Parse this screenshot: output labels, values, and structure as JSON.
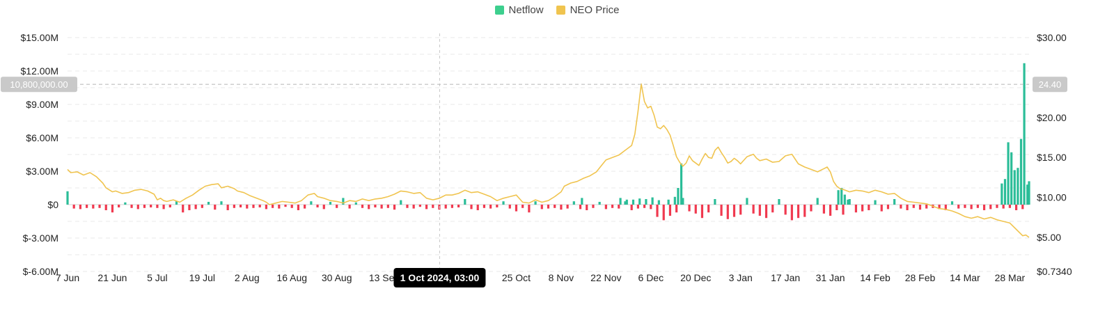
{
  "chart_data": {
    "type": "bar+line",
    "legend_position": "top-center",
    "grid": true,
    "legend": [
      {
        "key": "netflow",
        "label": "Netflow",
        "color": "#3dcf8e"
      },
      {
        "key": "price",
        "label": "NEO Price",
        "color": "#f0c44f"
      }
    ],
    "left_axis": {
      "range": [
        -6000000,
        15000000
      ],
      "ticks": [
        {
          "value": 15000000,
          "label": "$15.00M"
        },
        {
          "value": 12000000,
          "label": "$12.00M"
        },
        {
          "value": 9000000,
          "label": "$9.00M"
        },
        {
          "value": 6000000,
          "label": "$6.00M"
        },
        {
          "value": 3000000,
          "label": "$3.00M"
        },
        {
          "value": 0,
          "label": "$0"
        },
        {
          "value": -3000000,
          "label": "$-3.00M"
        },
        {
          "value": -6000000,
          "label": "$-6.00M"
        }
      ]
    },
    "right_axis": {
      "range": [
        0.734,
        30
      ],
      "ticks": [
        {
          "value": 30,
          "label": "$30.00"
        },
        {
          "value": 20,
          "label": "$20.00"
        },
        {
          "value": 15,
          "label": "$15.00"
        },
        {
          "value": 10,
          "label": "$10.00"
        },
        {
          "value": 5,
          "label": "$5.00"
        },
        {
          "value": 0.734,
          "label": "$0.7340"
        }
      ]
    },
    "x_axis": {
      "ticks": [
        {
          "day": 0,
          "label": "7 Jun"
        },
        {
          "day": 14,
          "label": "21 Jun"
        },
        {
          "day": 28,
          "label": "5 Jul"
        },
        {
          "day": 42,
          "label": "19 Jul"
        },
        {
          "day": 56,
          "label": "2 Aug"
        },
        {
          "day": 70,
          "label": "16 Aug"
        },
        {
          "day": 84,
          "label": "30 Aug"
        },
        {
          "day": 98,
          "label": "13 Se"
        },
        {
          "day": 140,
          "label": "25 Oct"
        },
        {
          "day": 154,
          "label": "8 Nov"
        },
        {
          "day": 168,
          "label": "22 Nov"
        },
        {
          "day": 182,
          "label": "6 Dec"
        },
        {
          "day": 196,
          "label": "20 Dec"
        },
        {
          "day": 210,
          "label": "3 Jan"
        },
        {
          "day": 224,
          "label": "17 Jan"
        },
        {
          "day": 238,
          "label": "31 Jan"
        },
        {
          "day": 252,
          "label": "14 Feb"
        },
        {
          "day": 266,
          "label": "28 Feb"
        },
        {
          "day": 280,
          "label": "14 Mar"
        },
        {
          "day": 294,
          "label": "28 Mar"
        }
      ],
      "days_total": 300
    },
    "crosshair": {
      "x_label": "1 Oct 2024, 03:00",
      "x_day": 116.1,
      "left_label": "10,800,000.00",
      "left_value": 10800000,
      "right_label": "24.40",
      "right_value": 24.4
    },
    "netflow": [
      [
        0,
        1200000
      ],
      [
        2,
        -350000
      ],
      [
        4,
        -400000
      ],
      [
        6,
        -300000
      ],
      [
        8,
        -350000
      ],
      [
        10,
        -300000
      ],
      [
        12,
        -500000
      ],
      [
        14,
        -700000
      ],
      [
        16,
        -250000
      ],
      [
        18,
        200000
      ],
      [
        20,
        -300000
      ],
      [
        22,
        -400000
      ],
      [
        24,
        -300000
      ],
      [
        26,
        -250000
      ],
      [
        28,
        -300000
      ],
      [
        30,
        -400000
      ],
      [
        32,
        -250000
      ],
      [
        34,
        300000
      ],
      [
        36,
        -700000
      ],
      [
        38,
        -500000
      ],
      [
        40,
        -400000
      ],
      [
        42,
        -300000
      ],
      [
        44,
        250000
      ],
      [
        46,
        -450000
      ],
      [
        48,
        300000
      ],
      [
        50,
        -500000
      ],
      [
        52,
        -300000
      ],
      [
        54,
        -250000
      ],
      [
        56,
        -350000
      ],
      [
        58,
        -300000
      ],
      [
        60,
        -250000
      ],
      [
        62,
        -400000
      ],
      [
        64,
        -300000
      ],
      [
        66,
        -350000
      ],
      [
        68,
        -200000
      ],
      [
        70,
        -300000
      ],
      [
        72,
        -500000
      ],
      [
        74,
        -350000
      ],
      [
        76,
        300000
      ],
      [
        78,
        -250000
      ],
      [
        80,
        -400000
      ],
      [
        82,
        250000
      ],
      [
        84,
        -300000
      ],
      [
        86,
        600000
      ],
      [
        88,
        -350000
      ],
      [
        90,
        200000
      ],
      [
        92,
        -300000
      ],
      [
        94,
        -400000
      ],
      [
        96,
        -250000
      ],
      [
        98,
        -350000
      ],
      [
        100,
        -300000
      ],
      [
        102,
        -450000
      ],
      [
        104,
        400000
      ],
      [
        106,
        -300000
      ],
      [
        108,
        -350000
      ],
      [
        110,
        -200000
      ],
      [
        112,
        -400000
      ],
      [
        114,
        -300000
      ],
      [
        116,
        -450000
      ],
      [
        118,
        -350000
      ],
      [
        120,
        -300000
      ],
      [
        122,
        -250000
      ],
      [
        124,
        500000
      ],
      [
        126,
        -400000
      ],
      [
        128,
        -500000
      ],
      [
        130,
        -300000
      ],
      [
        132,
        -350000
      ],
      [
        134,
        -250000
      ],
      [
        136,
        300000
      ],
      [
        138,
        -350000
      ],
      [
        140,
        -600000
      ],
      [
        142,
        -300000
      ],
      [
        144,
        -700000
      ],
      [
        146,
        300000
      ],
      [
        148,
        -400000
      ],
      [
        150,
        -350000
      ],
      [
        152,
        -300000
      ],
      [
        154,
        -450000
      ],
      [
        156,
        -350000
      ],
      [
        158,
        300000
      ],
      [
        160,
        -400000
      ],
      [
        162,
        -500000
      ],
      [
        164,
        -300000
      ],
      [
        166,
        250000
      ],
      [
        168,
        -400000
      ],
      [
        170,
        -300000
      ],
      [
        172,
        -350000
      ],
      [
        174,
        300000
      ],
      [
        176,
        -500000
      ],
      [
        178,
        -350000
      ],
      [
        180,
        -300000
      ],
      [
        182,
        -400000
      ],
      [
        184,
        -1100000
      ],
      [
        186,
        -1400000
      ],
      [
        188,
        -1000000
      ],
      [
        190,
        -700000
      ],
      [
        192,
        600000
      ],
      [
        194,
        -600000
      ],
      [
        196,
        -800000
      ],
      [
        198,
        -1200000
      ],
      [
        200,
        -700000
      ],
      [
        202,
        500000
      ],
      [
        204,
        -1000000
      ],
      [
        206,
        -1300000
      ],
      [
        208,
        -1100000
      ],
      [
        210,
        -900000
      ],
      [
        212,
        600000
      ],
      [
        214,
        -800000
      ],
      [
        216,
        -1000000
      ],
      [
        218,
        -1200000
      ],
      [
        220,
        -700000
      ],
      [
        222,
        500000
      ],
      [
        224,
        -900000
      ],
      [
        226,
        -1400000
      ],
      [
        228,
        -1200000
      ],
      [
        230,
        -1100000
      ],
      [
        232,
        -600000
      ],
      [
        234,
        600000
      ],
      [
        236,
        -800000
      ],
      [
        238,
        -1000000
      ],
      [
        240,
        -500000
      ],
      [
        242,
        -900000
      ],
      [
        244,
        500000
      ],
      [
        246,
        -700000
      ],
      [
        248,
        -600000
      ],
      [
        250,
        -500000
      ],
      [
        252,
        400000
      ],
      [
        254,
        -600000
      ],
      [
        256,
        -400000
      ],
      [
        258,
        500000
      ],
      [
        260,
        -350000
      ],
      [
        262,
        -500000
      ],
      [
        264,
        -300000
      ],
      [
        266,
        -450000
      ],
      [
        268,
        -350000
      ],
      [
        270,
        -300000
      ],
      [
        272,
        -400000
      ],
      [
        274,
        -500000
      ],
      [
        276,
        300000
      ],
      [
        278,
        -350000
      ],
      [
        280,
        -300000
      ],
      [
        282,
        -400000
      ],
      [
        284,
        -300000
      ],
      [
        286,
        -500000
      ],
      [
        288,
        -400000
      ],
      [
        290,
        -300000
      ],
      [
        292,
        -350000
      ],
      [
        294,
        -300000
      ],
      [
        296,
        -500000
      ],
      [
        298,
        -400000
      ],
      [
        191.5,
        3700000
      ],
      [
        190.5,
        1500000
      ],
      [
        189.5,
        700000
      ],
      [
        184.5,
        400000
      ],
      [
        187.5,
        450000
      ],
      [
        176.5,
        450000
      ],
      [
        160.5,
        600000
      ],
      [
        178.5,
        550000
      ],
      [
        180.5,
        500000
      ],
      [
        182.5,
        650000
      ],
      [
        172.5,
        600000
      ],
      [
        174.5,
        450000
      ],
      [
        240.5,
        1300000
      ],
      [
        241.5,
        1500000
      ],
      [
        242.5,
        900000
      ],
      [
        243.5,
        450000
      ],
      [
        291.5,
        1900000
      ],
      [
        292.5,
        2300000
      ],
      [
        293.5,
        5600000
      ],
      [
        294.5,
        4700000
      ],
      [
        295.5,
        3100000
      ],
      [
        296.5,
        3300000
      ],
      [
        297.5,
        5900000
      ],
      [
        298.5,
        12700000
      ],
      [
        299.5,
        1800000
      ],
      [
        300,
        2100000
      ]
    ],
    "price": [
      [
        0,
        13.5
      ],
      [
        1,
        13.1
      ],
      [
        3,
        13.2
      ],
      [
        5,
        12.8
      ],
      [
        7,
        13.1
      ],
      [
        9,
        12.6
      ],
      [
        11,
        11.8
      ],
      [
        12,
        11.2
      ],
      [
        14,
        10.7
      ],
      [
        15,
        10.8
      ],
      [
        17,
        10.5
      ],
      [
        19,
        10.6
      ],
      [
        21,
        10.9
      ],
      [
        23,
        11.0
      ],
      [
        25,
        10.8
      ],
      [
        27,
        10.4
      ],
      [
        28,
        9.7
      ],
      [
        29,
        9.9
      ],
      [
        30,
        9.6
      ],
      [
        31,
        9.5
      ],
      [
        33,
        9.7
      ],
      [
        35,
        9.4
      ],
      [
        37,
        9.9
      ],
      [
        39,
        10.3
      ],
      [
        41,
        10.9
      ],
      [
        43,
        11.4
      ],
      [
        45,
        11.6
      ],
      [
        47,
        11.7
      ],
      [
        48,
        11.2
      ],
      [
        50,
        11.4
      ],
      [
        52,
        11.1
      ],
      [
        53,
        10.8
      ],
      [
        55,
        10.6
      ],
      [
        57,
        10.2
      ],
      [
        59,
        9.9
      ],
      [
        61,
        9.6
      ],
      [
        62,
        9.4
      ],
      [
        63,
        9.1
      ],
      [
        65,
        9.3
      ],
      [
        67,
        9.5
      ],
      [
        69,
        9.4
      ],
      [
        71,
        9.3
      ],
      [
        73,
        9.6
      ],
      [
        75,
        10.3
      ],
      [
        77,
        10.5
      ],
      [
        78,
        10.1
      ],
      [
        80,
        9.9
      ],
      [
        82,
        9.6
      ],
      [
        84,
        9.5
      ],
      [
        86,
        9.3
      ],
      [
        88,
        9.6
      ],
      [
        90,
        9.5
      ],
      [
        92,
        9.8
      ],
      [
        94,
        9.6
      ],
      [
        96,
        9.8
      ],
      [
        98,
        9.9
      ],
      [
        100,
        10.1
      ],
      [
        102,
        10.4
      ],
      [
        104,
        10.8
      ],
      [
        106,
        10.7
      ],
      [
        108,
        10.5
      ],
      [
        110,
        10.6
      ],
      [
        112,
        9.9
      ],
      [
        114,
        9.7
      ],
      [
        116,
        9.9
      ],
      [
        118,
        10.3
      ],
      [
        120,
        10.3
      ],
      [
        122,
        10.5
      ],
      [
        124,
        10.9
      ],
      [
        126,
        10.6
      ],
      [
        128,
        10.7
      ],
      [
        130,
        10.4
      ],
      [
        132,
        10.1
      ],
      [
        134,
        9.6
      ],
      [
        136,
        9.9
      ],
      [
        138,
        10.1
      ],
      [
        140,
        10.3
      ],
      [
        142,
        9.4
      ],
      [
        144,
        9.3
      ],
      [
        146,
        9.7
      ],
      [
        148,
        9.4
      ],
      [
        150,
        9.6
      ],
      [
        152,
        10.1
      ],
      [
        154,
        10.7
      ],
      [
        155,
        11.4
      ],
      [
        157,
        11.8
      ],
      [
        159,
        12.0
      ],
      [
        161,
        12.4
      ],
      [
        163,
        12.7
      ],
      [
        165,
        13.2
      ],
      [
        167,
        14.2
      ],
      [
        168,
        14.7
      ],
      [
        170,
        15.0
      ],
      [
        172,
        15.3
      ],
      [
        174,
        15.9
      ],
      [
        176,
        16.5
      ],
      [
        177,
        17.9
      ],
      [
        178,
        20.8
      ],
      [
        179,
        24.2
      ],
      [
        180,
        22.0
      ],
      [
        181,
        21.2
      ],
      [
        182,
        21.4
      ],
      [
        183,
        20.3
      ],
      [
        184,
        18.8
      ],
      [
        185,
        18.6
      ],
      [
        186,
        19.0
      ],
      [
        187,
        18.5
      ],
      [
        188,
        17.8
      ],
      [
        189,
        16.5
      ],
      [
        190,
        15.1
      ],
      [
        191,
        14.4
      ],
      [
        192,
        13.9
      ],
      [
        193,
        14.3
      ],
      [
        194,
        15.2
      ],
      [
        195,
        14.6
      ],
      [
        196,
        14.3
      ],
      [
        197,
        14.0
      ],
      [
        198,
        14.8
      ],
      [
        199,
        15.5
      ],
      [
        200,
        15.0
      ],
      [
        201,
        14.9
      ],
      [
        202,
        15.9
      ],
      [
        203,
        16.3
      ],
      [
        204,
        15.6
      ],
      [
        205,
        15.0
      ],
      [
        206,
        14.3
      ],
      [
        207,
        14.5
      ],
      [
        208,
        14.9
      ],
      [
        209,
        14.6
      ],
      [
        210,
        14.2
      ],
      [
        212,
        15.1
      ],
      [
        214,
        15.4
      ],
      [
        215,
        14.9
      ],
      [
        216,
        14.6
      ],
      [
        218,
        14.8
      ],
      [
        220,
        14.4
      ],
      [
        222,
        14.5
      ],
      [
        224,
        15.2
      ],
      [
        226,
        15.4
      ],
      [
        227,
        14.8
      ],
      [
        228,
        14.2
      ],
      [
        230,
        13.8
      ],
      [
        232,
        13.5
      ],
      [
        234,
        13.2
      ],
      [
        236,
        13.6
      ],
      [
        237,
        13.8
      ],
      [
        238,
        13.2
      ],
      [
        239,
        12.0
      ],
      [
        240,
        11.4
      ],
      [
        241,
        11.1
      ],
      [
        242,
        11.0
      ],
      [
        244,
        10.7
      ],
      [
        246,
        10.9
      ],
      [
        248,
        10.8
      ],
      [
        250,
        10.6
      ],
      [
        252,
        10.9
      ],
      [
        254,
        10.7
      ],
      [
        256,
        10.4
      ],
      [
        258,
        10.5
      ],
      [
        260,
        9.9
      ],
      [
        262,
        9.5
      ],
      [
        264,
        9.4
      ],
      [
        266,
        9.3
      ],
      [
        268,
        9.2
      ],
      [
        270,
        8.9
      ],
      [
        272,
        8.6
      ],
      [
        274,
        8.5
      ],
      [
        276,
        8.3
      ],
      [
        278,
        8.0
      ],
      [
        280,
        7.6
      ],
      [
        282,
        7.4
      ],
      [
        284,
        7.6
      ],
      [
        286,
        7.3
      ],
      [
        288,
        7.5
      ],
      [
        290,
        7.2
      ],
      [
        292,
        7.0
      ],
      [
        294,
        6.8
      ],
      [
        296,
        6.0
      ],
      [
        298,
        5.2
      ],
      [
        299,
        5.3
      ],
      [
        300,
        5.0
      ]
    ]
  }
}
